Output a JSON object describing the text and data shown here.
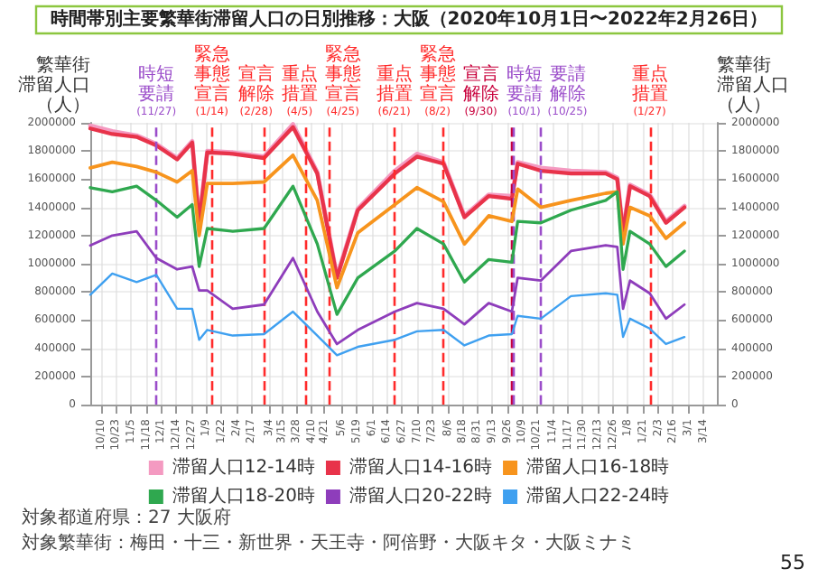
{
  "chart_data": {
    "type": "line",
    "title": "時間帯別主要繁華街滞留人口の日別推移：大阪（2020年10月1日〜2022年2月26日）",
    "ylabel": "繁華街滞留人口（人）",
    "y2label": "繁華街滞留人口（人）",
    "x": [
      "2020-10-01",
      "2020-10-20",
      "2020-11-10",
      "2020-11-27",
      "2020-12-15",
      "2020-12-28",
      "2021-01-03",
      "2021-01-10",
      "2021-02-01",
      "2021-02-28",
      "2021-03-25",
      "2021-04-15",
      "2021-05-02",
      "2021-05-20",
      "2021-06-21",
      "2021-07-10",
      "2021-08-02",
      "2021-08-20",
      "2021-09-10",
      "2021-09-30",
      "2021-10-05",
      "2021-10-25",
      "2021-11-20",
      "2021-12-20",
      "2021-12-30",
      "2022-01-04",
      "2022-01-10",
      "2022-01-27",
      "2022-02-10",
      "2022-02-26"
    ],
    "series": [
      {
        "name": "滞留人口12-14時",
        "color": "#f49ac1",
        "values": [
          1980000,
          1940000,
          1910000,
          1850000,
          1750000,
          1870000,
          1300000,
          1800000,
          1790000,
          1760000,
          1990000,
          1650000,
          910000,
          1390000,
          1660000,
          1780000,
          1720000,
          1340000,
          1490000,
          1480000,
          1720000,
          1680000,
          1660000,
          1650000,
          1610000,
          1230000,
          1560000,
          1490000,
          1300000,
          1410000
        ]
      },
      {
        "name": "滞留人口14-16時",
        "color": "#e8334a",
        "values": [
          1960000,
          1920000,
          1900000,
          1840000,
          1740000,
          1860000,
          1290000,
          1790000,
          1780000,
          1750000,
          1970000,
          1640000,
          900000,
          1380000,
          1640000,
          1760000,
          1710000,
          1330000,
          1480000,
          1460000,
          1710000,
          1660000,
          1640000,
          1640000,
          1600000,
          1220000,
          1550000,
          1480000,
          1290000,
          1400000
        ]
      },
      {
        "name": "滞留人口16-18時",
        "color": "#f7941d",
        "values": [
          1680000,
          1720000,
          1690000,
          1650000,
          1580000,
          1660000,
          1200000,
          1570000,
          1570000,
          1580000,
          1770000,
          1450000,
          830000,
          1220000,
          1420000,
          1540000,
          1440000,
          1140000,
          1340000,
          1300000,
          1530000,
          1400000,
          1450000,
          1500000,
          1510000,
          1140000,
          1400000,
          1340000,
          1180000,
          1290000
        ]
      },
      {
        "name": "滞留人口18-20時",
        "color": "#2fa84f",
        "values": [
          1540000,
          1510000,
          1550000,
          1450000,
          1330000,
          1420000,
          980000,
          1250000,
          1230000,
          1250000,
          1550000,
          1140000,
          640000,
          900000,
          1090000,
          1250000,
          1140000,
          870000,
          1030000,
          1010000,
          1300000,
          1290000,
          1380000,
          1450000,
          1510000,
          960000,
          1230000,
          1140000,
          980000,
          1090000
        ]
      },
      {
        "name": "滞留人口20-22時",
        "color": "#8e3dbb",
        "values": [
          1130000,
          1200000,
          1230000,
          1040000,
          960000,
          980000,
          810000,
          810000,
          680000,
          710000,
          1040000,
          660000,
          430000,
          530000,
          660000,
          720000,
          680000,
          570000,
          720000,
          660000,
          900000,
          880000,
          1090000,
          1130000,
          1120000,
          680000,
          880000,
          790000,
          610000,
          710000
        ]
      },
      {
        "name": "滞留人口22-24時",
        "color": "#3fa0f0",
        "values": [
          780000,
          930000,
          870000,
          920000,
          680000,
          680000,
          460000,
          530000,
          490000,
          500000,
          660000,
          490000,
          350000,
          410000,
          460000,
          520000,
          530000,
          420000,
          490000,
          500000,
          630000,
          610000,
          770000,
          790000,
          780000,
          480000,
          610000,
          540000,
          430000,
          480000
        ]
      }
    ],
    "xlim": [
      "2020-10-01",
      "2022-03-26"
    ],
    "xticks": [
      {
        "value": "2020-10-10",
        "label": "10/10"
      },
      {
        "value": "2020-10-23",
        "label": "10/23"
      },
      {
        "value": "2020-11-05",
        "label": "11/5"
      },
      {
        "value": "2020-11-18",
        "label": "11/18"
      },
      {
        "value": "2020-12-01",
        "label": "12/1"
      },
      {
        "value": "2020-12-14",
        "label": "12/14"
      },
      {
        "value": "2020-12-27",
        "label": "12/27"
      },
      {
        "value": "2021-01-09",
        "label": "1/9"
      },
      {
        "value": "2021-01-22",
        "label": "1/22"
      },
      {
        "value": "2021-02-04",
        "label": "2/4"
      },
      {
        "value": "2021-02-17",
        "label": "2/17"
      },
      {
        "value": "2021-03-04",
        "label": "3/4"
      },
      {
        "value": "2021-03-15",
        "label": "3/15"
      },
      {
        "value": "2021-03-28",
        "label": "3/28"
      },
      {
        "value": "2021-04-10",
        "label": "4/10"
      },
      {
        "value": "2021-04-21",
        "label": "4/21"
      },
      {
        "value": "2021-05-06",
        "label": "5/6"
      },
      {
        "value": "2021-05-19",
        "label": "5/19"
      },
      {
        "value": "2021-06-01",
        "label": "6/1"
      },
      {
        "value": "2021-06-14",
        "label": "6/14"
      },
      {
        "value": "2021-06-27",
        "label": "6/27"
      },
      {
        "value": "2021-07-10",
        "label": "7/10"
      },
      {
        "value": "2021-07-23",
        "label": "7/23"
      },
      {
        "value": "2021-08-06",
        "label": "8/6"
      },
      {
        "value": "2021-08-18",
        "label": "8/18"
      },
      {
        "value": "2021-08-31",
        "label": "8/31"
      },
      {
        "value": "2021-09-13",
        "label": "9/13"
      },
      {
        "value": "2021-09-26",
        "label": "9/26"
      },
      {
        "value": "2021-10-09",
        "label": "10/9"
      },
      {
        "value": "2021-10-21",
        "label": "10/21"
      },
      {
        "value": "2021-11-04",
        "label": "11/4"
      },
      {
        "value": "2021-11-17",
        "label": "11/17"
      },
      {
        "value": "2021-11-30",
        "label": "11/30"
      },
      {
        "value": "2021-12-13",
        "label": "12/13"
      },
      {
        "value": "2021-12-26",
        "label": "12/26"
      },
      {
        "value": "2022-01-08",
        "label": "1/8"
      },
      {
        "value": "2022-01-21",
        "label": "1/21"
      },
      {
        "value": "2022-02-03",
        "label": "2/3"
      },
      {
        "value": "2022-02-16",
        "label": "2/16"
      },
      {
        "value": "2022-03-01",
        "label": "3/1"
      },
      {
        "value": "2022-03-14",
        "label": "3/14"
      }
    ],
    "ylim": [
      0,
      2000000
    ],
    "yticks": [
      0,
      200000,
      400000,
      600000,
      800000,
      1000000,
      1200000,
      1400000,
      1600000,
      1800000,
      2000000
    ],
    "y2lim": [
      0,
      2000000
    ],
    "y2ticks": [
      0,
      200000,
      400000,
      600000,
      800000,
      1000000,
      1200000,
      1400000,
      1600000,
      1800000,
      2000000
    ],
    "ref_lines": [
      {
        "axis": "x",
        "value": "2020-11-27",
        "label": "時短要請(11/27)",
        "color": "#9b4dca",
        "line_style": "dashed"
      },
      {
        "axis": "x",
        "value": "2021-01-14",
        "label": "緊急事態宣言(1/14)",
        "color": "#ff2a2a",
        "line_style": "dashed"
      },
      {
        "axis": "x",
        "value": "2021-02-28",
        "label": "宣言解除(2/28)",
        "color": "#ff2a2a",
        "line_style": "dashed"
      },
      {
        "axis": "x",
        "value": "2021-04-05",
        "label": "重点措置(4/5)",
        "color": "#ff2a2a",
        "line_style": "dashed"
      },
      {
        "axis": "x",
        "value": "2021-04-25",
        "label": "緊急事態宣言(4/25)",
        "color": "#ff2a2a",
        "line_style": "dashed"
      },
      {
        "axis": "x",
        "value": "2021-06-21",
        "label": "重点措置(6/21)",
        "color": "#ff2a2a",
        "line_style": "dashed"
      },
      {
        "axis": "x",
        "value": "2021-08-02",
        "label": "緊急事態宣言(8/2)",
        "color": "#ff2a2a",
        "line_style": "dashed"
      },
      {
        "axis": "x",
        "value": "2021-09-30",
        "label": "宣言解除(9/30)",
        "color": "#c8003c",
        "line_style": "dashed"
      },
      {
        "axis": "x",
        "value": "2021-10-01",
        "label": "時短要請(10/1)",
        "color": "#9b4dca",
        "line_style": "dashed"
      },
      {
        "axis": "x",
        "value": "2021-10-25",
        "label": "要請解除(10/25)",
        "color": "#9b4dca",
        "line_style": "dashed"
      },
      {
        "axis": "x",
        "value": "2022-01-27",
        "label": "重点措置(1/27)",
        "color": "#ff2a2a",
        "line_style": "dashed"
      }
    ],
    "annotations": [
      "対象都道府県：27 大阪府",
      "対象繁華街：梅田・十三・新世界・天王寺・阿倍野・大阪キタ・大阪ミナミ",
      "55"
    ],
    "grid": true,
    "legend": "bottom",
    "marker": "none",
    "line_style": "solid"
  }
}
